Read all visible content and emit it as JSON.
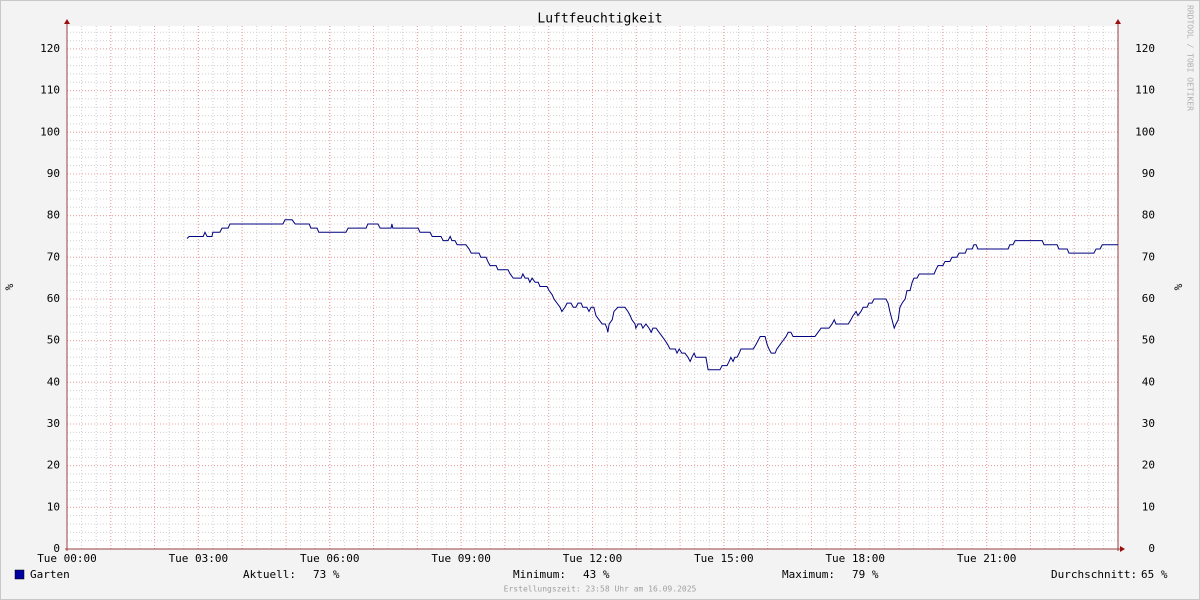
{
  "chart_data": {
    "type": "line",
    "title": "Luftfeuchtigkeit",
    "y_label": "%",
    "watermark": "RRDTOOL / TOBI OETIKER",
    "footer": "Erstellungszeit: 23:58 Uhr am 16.09.2025",
    "xlim": [
      0,
      24
    ],
    "ylim": [
      0,
      125.5
    ],
    "xticks": [
      {
        "value": 0,
        "label": "Tue 00:00"
      },
      {
        "value": 3,
        "label": "Tue 03:00"
      },
      {
        "value": 6,
        "label": "Tue 06:00"
      },
      {
        "value": 9,
        "label": "Tue 09:00"
      },
      {
        "value": 12,
        "label": "Tue 12:00"
      },
      {
        "value": 15,
        "label": "Tue 15:00"
      },
      {
        "value": 18,
        "label": "Tue 18:00"
      },
      {
        "value": 21,
        "label": "Tue 21:00"
      }
    ],
    "yticks": [
      0,
      10,
      20,
      30,
      40,
      50,
      60,
      70,
      80,
      90,
      100,
      110,
      120
    ],
    "grid": true,
    "x": [
      2.74,
      2.79,
      3.11,
      3.15,
      3.2,
      3.31,
      3.33,
      3.49,
      3.54,
      3.68,
      3.72,
      4.93,
      4.98,
      5.14,
      5.21,
      5.53,
      5.57,
      5.71,
      5.75,
      6.37,
      6.42,
      6.83,
      6.87,
      7.1,
      7.15,
      7.4,
      7.42,
      7.44,
      8.02,
      8.06,
      8.29,
      8.34,
      8.54,
      8.59,
      8.7,
      8.75,
      8.79,
      8.86,
      8.91,
      9.11,
      9.18,
      9.23,
      9.41,
      9.45,
      9.57,
      9.61,
      9.66,
      9.8,
      9.84,
      10.07,
      10.12,
      10.19,
      10.37,
      10.41,
      10.46,
      10.53,
      10.57,
      10.62,
      10.69,
      10.76,
      10.8,
      10.96,
      11.01,
      11.08,
      11.12,
      11.19,
      11.26,
      11.3,
      11.37,
      11.42,
      11.51,
      11.56,
      11.62,
      11.67,
      11.74,
      11.78,
      11.87,
      11.92,
      11.97,
      12.03,
      12.08,
      12.15,
      12.22,
      12.29,
      12.33,
      12.35,
      12.38,
      12.45,
      12.49,
      12.58,
      12.74,
      12.81,
      12.86,
      12.9,
      12.97,
      12.99,
      13.04,
      13.11,
      13.15,
      13.22,
      13.29,
      13.34,
      13.38,
      13.45,
      13.52,
      13.59,
      13.66,
      13.72,
      13.77,
      13.89,
      13.93,
      13.98,
      14.04,
      14.11,
      14.18,
      14.23,
      14.27,
      14.32,
      14.36,
      14.59,
      14.64,
      14.91,
      14.96,
      15.07,
      15.12,
      15.16,
      15.21,
      15.25,
      15.3,
      15.35,
      15.39,
      15.67,
      15.73,
      15.78,
      15.83,
      15.94,
      15.99,
      16.03,
      16.08,
      16.17,
      16.21,
      16.28,
      16.35,
      16.42,
      16.47,
      16.53,
      16.58,
      17.08,
      17.15,
      17.22,
      17.4,
      17.47,
      17.52,
      17.56,
      17.84,
      17.9,
      17.95,
      18.02,
      18.06,
      18.13,
      18.18,
      18.27,
      18.31,
      18.38,
      18.43,
      18.7,
      18.75,
      18.79,
      18.84,
      18.89,
      18.93,
      18.98,
      19.02,
      19.07,
      19.14,
      19.18,
      19.25,
      19.3,
      19.34,
      19.41,
      19.46,
      19.8,
      19.84,
      19.89,
      20.0,
      20.05,
      20.16,
      20.21,
      20.32,
      20.37,
      20.51,
      20.55,
      20.67,
      20.71,
      20.76,
      20.8,
      21.49,
      21.53,
      21.6,
      21.65,
      22.27,
      22.31,
      22.61,
      22.65,
      22.84,
      22.88,
      23.45,
      23.5,
      23.59,
      23.64,
      24.0
    ],
    "series": [
      {
        "name": "Garten",
        "color": "#000080",
        "legend_color": "#0000a0",
        "values": [
          74.5,
          75,
          75,
          76,
          75,
          75,
          76,
          76,
          77,
          77,
          78,
          78,
          79,
          79,
          78,
          78,
          77,
          77,
          76,
          76,
          77,
          77,
          78,
          78,
          77,
          77,
          78,
          77,
          77,
          76,
          76,
          75,
          75,
          74,
          74,
          75,
          74,
          74,
          73,
          73,
          72,
          71,
          71,
          70,
          70,
          69,
          68,
          68,
          67,
          67,
          66,
          65,
          65,
          66,
          65,
          65,
          64,
          65,
          64,
          64,
          63,
          63,
          62,
          61,
          60,
          59,
          58,
          57,
          58,
          59,
          59,
          58,
          58,
          59,
          59,
          58,
          58,
          57,
          58,
          58,
          56,
          55,
          54,
          54,
          53,
          52,
          54,
          55,
          57,
          58,
          58,
          57,
          56,
          55,
          54,
          53,
          54,
          54,
          53,
          54,
          53,
          52,
          53,
          53,
          52,
          51,
          50,
          49,
          48,
          48,
          47,
          48,
          47,
          47,
          46,
          45,
          46,
          47,
          46,
          46,
          43,
          43,
          44,
          44,
          45,
          46,
          45,
          46,
          46,
          47,
          48,
          48,
          49,
          50,
          51,
          51,
          49,
          48,
          47,
          47,
          48,
          49,
          50,
          51,
          52,
          52,
          51,
          51,
          52,
          53,
          53,
          54,
          55,
          54,
          54,
          55,
          56,
          57,
          56,
          57,
          58,
          58,
          59,
          59,
          60,
          60,
          59,
          57,
          55,
          53,
          54,
          55,
          58,
          59,
          60,
          62,
          62,
          64,
          65,
          65,
          66,
          66,
          67,
          68,
          68,
          69,
          69,
          70,
          70,
          71,
          71,
          72,
          72,
          73,
          73,
          72,
          72,
          73,
          73,
          74,
          74,
          73,
          73,
          72,
          72,
          71,
          71,
          72,
          72,
          73,
          73
        ]
      }
    ],
    "stats": {
      "labels": [
        "Aktuell:",
        "Minimum:",
        "Maximum:",
        "Durchschnitt:"
      ],
      "values": [
        73,
        43,
        79,
        65
      ],
      "value_labels": [
        "73 %",
        "43 %",
        "79 %",
        "65 %"
      ]
    }
  }
}
